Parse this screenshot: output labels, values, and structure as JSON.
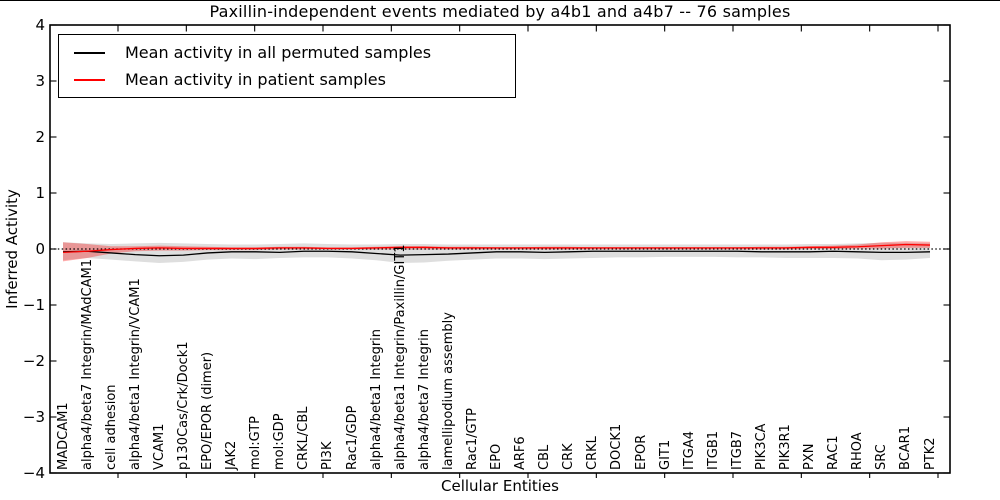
{
  "figure": {
    "title": "Paxillin-independent events mediated by a4b1 and a4b7 -- 76 samples"
  },
  "axes": {
    "xlabel": "Cellular Entities",
    "ylabel": "Inferred Activity",
    "yticks": [
      "4",
      "3",
      "2",
      "1",
      "0",
      "−1",
      "−2",
      "−3",
      "−4"
    ]
  },
  "legend": {
    "position": "upper left",
    "items": [
      {
        "label": "Mean activity in all permuted samples",
        "color": "#000000"
      },
      {
        "label": "Mean activity in patient samples",
        "color": "#ff0000"
      }
    ]
  },
  "chart_data": {
    "type": "line",
    "title": "Paxillin-independent events mediated by a4b1 and a4b7 -- 76 samples",
    "xlabel": "Cellular Entities",
    "ylabel": "Inferred Activity",
    "ylim": [
      -4,
      4
    ],
    "grid": false,
    "legend_position": "upper left",
    "zero_line": {
      "value": 0,
      "style": "dotted",
      "color": "#000000"
    },
    "categories": [
      "MADCAM1",
      "alpha4/beta7 Integrin/MAdCAM1",
      "cell adhesion",
      "alpha4/beta1 Integrin/VCAM1",
      "VCAM1",
      "p130Cas/Crk/Dock1",
      "EPO/EPOR (dimer)",
      "JAK2",
      "mol:GTP",
      "mol:GDP",
      "CRKL/CBL",
      "PI3K",
      "Rac1/GDP",
      "alpha4/beta1 Integrin",
      "alpha4/beta1 Integrin/Paxillin/GIT1",
      "alpha4/beta7 Integrin",
      "lamellipodium assembly",
      "Rac1/GTP",
      "EPO",
      "ARF6",
      "CBL",
      "CRK",
      "CRKL",
      "DOCK1",
      "EPOR",
      "GIT1",
      "ITGA4",
      "ITGB1",
      "ITGB7",
      "PIK3CA",
      "PIK3R1",
      "PXN",
      "RAC1",
      "RHOA",
      "SRC",
      "BCAR1",
      "PTK2"
    ],
    "series": [
      {
        "name": "Mean activity in all permuted samples",
        "color": "#000000",
        "band_color": "rgba(0,0,0,0.13)",
        "band_name": "permuted-confidence-band",
        "values": [
          -0.05,
          -0.04,
          -0.07,
          -0.1,
          -0.12,
          -0.11,
          -0.07,
          -0.05,
          -0.05,
          -0.06,
          -0.04,
          -0.04,
          -0.05,
          -0.08,
          -0.11,
          -0.1,
          -0.09,
          -0.07,
          -0.05,
          -0.05,
          -0.06,
          -0.05,
          -0.04,
          -0.04,
          -0.04,
          -0.04,
          -0.04,
          -0.04,
          -0.04,
          -0.05,
          -0.05,
          -0.05,
          -0.04,
          -0.05,
          -0.06,
          -0.06,
          -0.05
        ],
        "band_upper": [
          0.12,
          0.1,
          0.09,
          0.1,
          0.11,
          0.1,
          0.09,
          0.08,
          0.08,
          0.09,
          0.1,
          0.09,
          0.08,
          0.08,
          0.09,
          0.09,
          0.08,
          0.08,
          0.08,
          0.08,
          0.08,
          0.08,
          0.08,
          0.08,
          0.08,
          0.08,
          0.08,
          0.08,
          0.08,
          0.08,
          0.08,
          0.09,
          0.09,
          0.1,
          0.11,
          0.11,
          0.1
        ],
        "band_lower": [
          -0.2,
          -0.16,
          -0.19,
          -0.22,
          -0.25,
          -0.23,
          -0.19,
          -0.17,
          -0.18,
          -0.16,
          -0.15,
          -0.15,
          -0.17,
          -0.2,
          -0.25,
          -0.24,
          -0.21,
          -0.19,
          -0.17,
          -0.17,
          -0.18,
          -0.17,
          -0.16,
          -0.15,
          -0.15,
          -0.14,
          -0.14,
          -0.14,
          -0.15,
          -0.15,
          -0.16,
          -0.16,
          -0.16,
          -0.17,
          -0.2,
          -0.19,
          -0.16
        ]
      },
      {
        "name": "Mean activity in patient samples",
        "color": "#ff0000",
        "band_color": "rgba(255,0,0,0.32)",
        "band_name": "patient-confidence-band",
        "values": [
          -0.06,
          -0.04,
          -0.01,
          0.01,
          0.02,
          0.01,
          0.01,
          0.01,
          0.01,
          0.02,
          0.02,
          0.01,
          0.01,
          0.02,
          0.03,
          0.03,
          0.02,
          0.02,
          0.02,
          0.02,
          0.02,
          0.02,
          0.02,
          0.02,
          0.02,
          0.02,
          0.02,
          0.02,
          0.02,
          0.02,
          0.02,
          0.03,
          0.03,
          0.04,
          0.06,
          0.08,
          0.07
        ],
        "band_upper": [
          0.12,
          0.09,
          0.05,
          0.05,
          0.06,
          0.05,
          0.04,
          0.03,
          0.03,
          0.04,
          0.04,
          0.03,
          0.03,
          0.04,
          0.05,
          0.05,
          0.04,
          0.04,
          0.03,
          0.03,
          0.04,
          0.04,
          0.03,
          0.03,
          0.03,
          0.03,
          0.03,
          0.03,
          0.03,
          0.04,
          0.04,
          0.05,
          0.06,
          0.08,
          0.12,
          0.14,
          0.13
        ],
        "band_lower": [
          -0.22,
          -0.16,
          -0.08,
          -0.04,
          -0.03,
          -0.03,
          -0.02,
          -0.02,
          -0.02,
          -0.01,
          -0.01,
          -0.01,
          -0.01,
          -0.01,
          -0.01,
          -0.01,
          -0.01,
          -0.01,
          -0.01,
          -0.01,
          -0.01,
          -0.01,
          -0.01,
          -0.01,
          -0.01,
          -0.01,
          -0.01,
          -0.01,
          -0.01,
          -0.01,
          -0.01,
          0.0,
          0.0,
          0.01,
          0.01,
          0.02,
          0.02
        ]
      }
    ]
  }
}
